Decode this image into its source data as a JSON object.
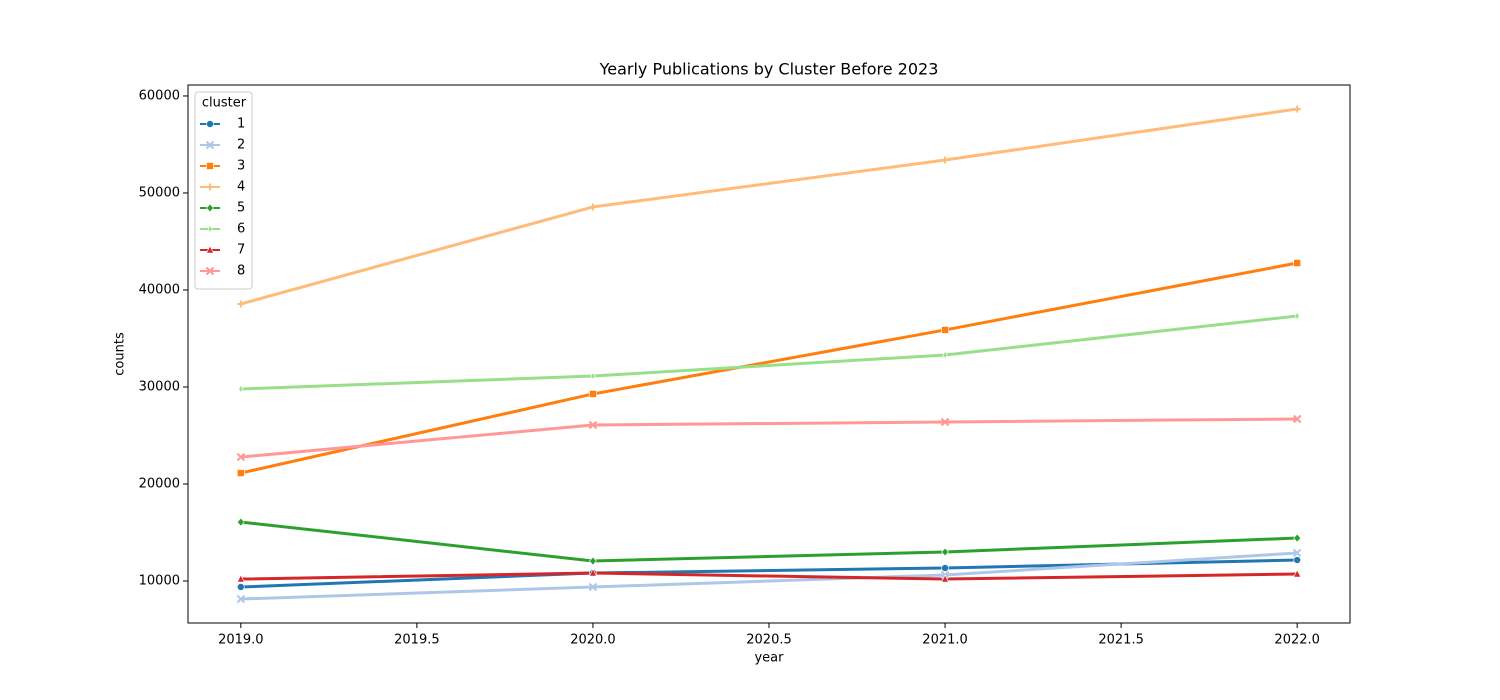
{
  "chart_data": {
    "type": "line",
    "title": "Yearly Publications by Cluster Before 2023",
    "x_label": "year",
    "y_label": "counts",
    "legend_title": "cluster",
    "legend": "upper left",
    "x": [
      2019,
      2020,
      2021,
      2022
    ],
    "xlim": [
      2018.85,
      2022.15
    ],
    "xticks": [
      {
        "value": 2019,
        "label": "2019.0"
      },
      {
        "value": 2019.5,
        "label": "2019.5"
      },
      {
        "value": 2020,
        "label": "2020.0"
      },
      {
        "value": 2020.5,
        "label": "2020.5"
      },
      {
        "value": 2021,
        "label": "2021.0"
      },
      {
        "value": 2021.5,
        "label": "2021.5"
      },
      {
        "value": 2022,
        "label": "2022.0"
      }
    ],
    "ylim": [
      5670,
      61130
    ],
    "yticks": [
      10000,
      20000,
      30000,
      40000,
      50000,
      60000
    ],
    "series": [
      {
        "name": "1",
        "color": "#1f77b4",
        "marker": "circle",
        "values": [
          9380,
          10820,
          11340,
          12160
        ]
      },
      {
        "name": "2",
        "color": "#aec7e8",
        "marker": "x",
        "values": [
          8140,
          9380,
          10620,
          12890
        ]
      },
      {
        "name": "3",
        "color": "#ff7f0e",
        "marker": "square",
        "values": [
          21130,
          29280,
          35880,
          42780
        ]
      },
      {
        "name": "4",
        "color": "#ffbb78",
        "marker": "plus",
        "values": [
          38560,
          48560,
          53400,
          58660
        ]
      },
      {
        "name": "5",
        "color": "#2ca02c",
        "marker": "diamond",
        "values": [
          16080,
          12060,
          12990,
          14430
        ]
      },
      {
        "name": "6",
        "color": "#98df8a",
        "marker": "thin-diamond",
        "values": [
          29790,
          31130,
          33300,
          37320
        ]
      },
      {
        "name": "7",
        "color": "#d62728",
        "marker": "triangle",
        "values": [
          10200,
          10820,
          10200,
          10720
        ]
      },
      {
        "name": "8",
        "color": "#ff9896",
        "marker": "x",
        "values": [
          22780,
          26080,
          26390,
          26700
        ]
      }
    ]
  }
}
